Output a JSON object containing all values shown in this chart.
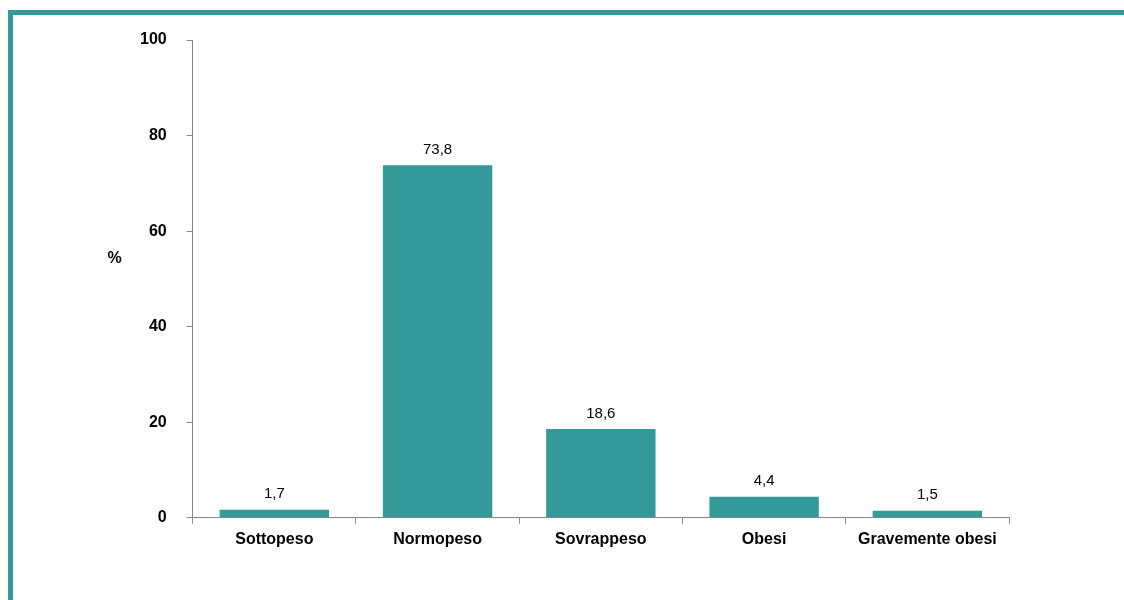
{
  "chart_data": {
    "type": "bar",
    "ylabel": "%",
    "categories": [
      "Sottopeso",
      "Normopeso",
      "Sovrappeso",
      "Obesi",
      "Gravemente obesi"
    ],
    "values": [
      1.7,
      73.8,
      18.6,
      4.4,
      1.5
    ],
    "value_labels": [
      "1,7",
      "73,8",
      "18,6",
      "4,4",
      "1,5"
    ],
    "color": "#339999",
    "ylim": [
      0,
      100
    ],
    "yticks": [
      0,
      20,
      40,
      60,
      80,
      100
    ],
    "grid": false,
    "legend": false
  }
}
